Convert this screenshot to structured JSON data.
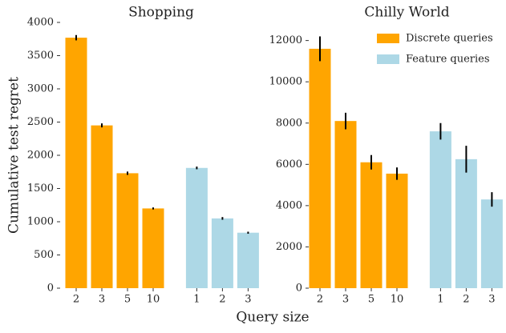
{
  "chart_data": [
    {
      "type": "bar",
      "title": "Shopping",
      "ylabel": "Cumulative test regret",
      "xlabel": "Query size",
      "categories": [
        "2",
        "3",
        "5",
        "10",
        null,
        "1",
        "2",
        "3"
      ],
      "series": [
        {
          "name": "Discrete queries",
          "color": "#ffa500",
          "values": [
            3770,
            2450,
            1730,
            1200,
            null,
            null,
            null,
            null
          ],
          "errors": [
            40,
            30,
            25,
            15,
            null,
            null,
            null,
            null
          ]
        },
        {
          "name": "Feature queries",
          "color": "#add8e6",
          "values": [
            null,
            null,
            null,
            null,
            null,
            1810,
            1050,
            835
          ],
          "errors": [
            null,
            null,
            null,
            null,
            null,
            20,
            20,
            15
          ]
        }
      ],
      "ylim": [
        0,
        4000
      ],
      "yticks": [
        0,
        500,
        1000,
        1500,
        2000,
        2500,
        3000,
        3500,
        4000
      ]
    },
    {
      "type": "bar",
      "title": "Chilly World",
      "categories": [
        "2",
        "3",
        "5",
        "10",
        null,
        "1",
        "2",
        "3"
      ],
      "series": [
        {
          "name": "Discrete queries",
          "color": "#ffa500",
          "values": [
            11600,
            8100,
            6100,
            5550,
            null,
            null,
            null,
            null
          ],
          "errors": [
            600,
            400,
            350,
            300,
            null,
            null,
            null,
            null
          ]
        },
        {
          "name": "Feature queries",
          "color": "#add8e6",
          "values": [
            null,
            null,
            null,
            null,
            null,
            7600,
            6250,
            4300
          ],
          "errors": [
            null,
            null,
            null,
            null,
            null,
            400,
            650,
            350
          ]
        }
      ],
      "ylim": [
        0,
        12800
      ],
      "yticks": [
        0,
        2000,
        4000,
        6000,
        8000,
        10000,
        12000
      ],
      "legend": "upper right"
    }
  ]
}
